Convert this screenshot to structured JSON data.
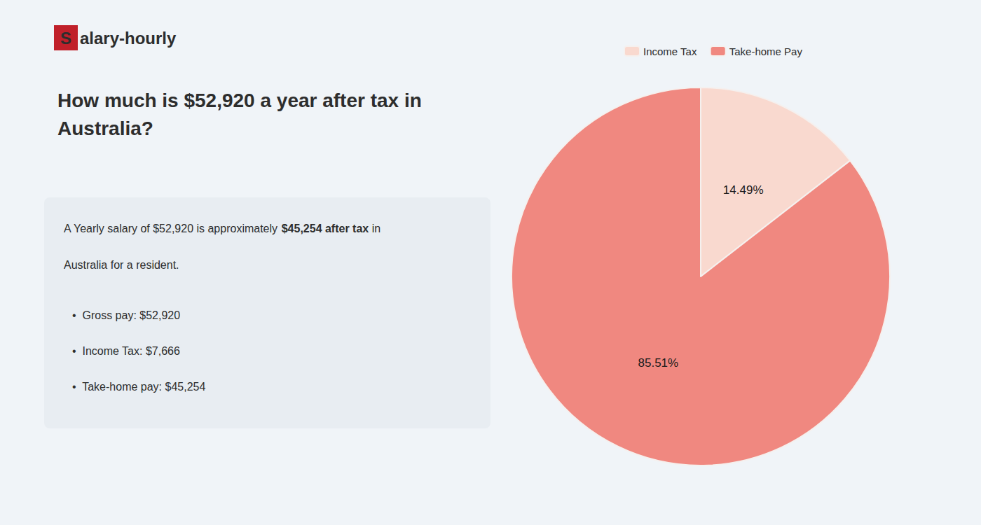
{
  "chart_data": {
    "type": "pie",
    "title": "How much is $52,920 a year after tax in Australia?",
    "annotations": [
      [
        {
          "text": "S",
          "color": "#c0202a"
        },
        {
          "text": "alary-hourly"
        }
      ],
      [
        {
          "text": "A Yearly salary of $52,920 is approximately "
        },
        {
          "text": "$45,254 after tax",
          "color": "#c0202a"
        },
        {
          "text": " in"
        }
      ],
      [
        {
          "text": "Australia for a resident."
        }
      ],
      [
        {
          "text": "•  Gross pay: $52,920"
        }
      ],
      [
        {
          "text": "•  Income Tax: $7,666"
        }
      ],
      [
        {
          "text": "•  Take-home pay: $45,254"
        }
      ]
    ],
    "categories": [
      "Income Tax",
      "Take-home Pay"
    ],
    "values": [
      14.49,
      85.51
    ],
    "value_labels": [
      "14.49%",
      "85.51%"
    ],
    "colors": [
      "#f9d9cf",
      "#f08880"
    ],
    "data_labels": true,
    "legend": "top"
  }
}
